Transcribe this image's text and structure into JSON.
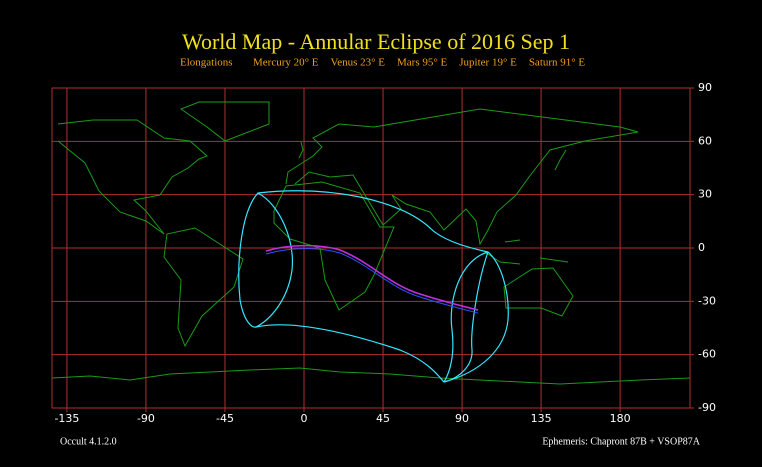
{
  "title": "World Map - Annular Eclipse of 2016 Sep  1",
  "elongations": {
    "label": "Elongations",
    "items": [
      "Mercury 20° E",
      "Venus 23° E",
      "Mars 95° E",
      "Jupiter 19° E",
      "Saturn 91° E"
    ]
  },
  "map": {
    "xlim": [
      -143.5,
      219.8
    ],
    "ylim": [
      -90,
      90
    ],
    "xticks": [
      -135,
      -90,
      -45,
      0,
      45,
      90,
      135,
      180
    ],
    "yticks": [
      90,
      60,
      30,
      0,
      -30,
      -60,
      -90
    ],
    "grid": true,
    "grid_color": "#b03030",
    "frame_color": "#b03030"
  },
  "footer": {
    "left": "Occult 4.1.2.0",
    "right": "Ephemeris: Chapront 87B + VSOP87A"
  }
}
